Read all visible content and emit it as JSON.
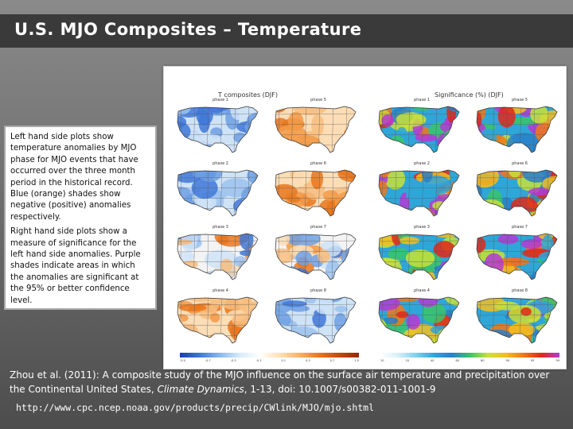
{
  "slide": {
    "title": "U.S. MJO Composites – Temperature"
  },
  "figure": {
    "left_header": "T composites (DJF)",
    "right_header": "Significance (%) (DJF)",
    "left_phase_labels": [
      "phase 1",
      "phase 5",
      "phase 2",
      "phase 6",
      "phase 3",
      "phase 7",
      "phase 4",
      "phase 8"
    ],
    "right_phase_labels": [
      "phase 1",
      "phase 5",
      "phase 2",
      "phase 6",
      "phase 3",
      "phase 7",
      "phase 4",
      "phase 8"
    ],
    "left_colorbar_ticks": [
      "-5.0",
      "-0.7",
      "-0.3",
      "-0.1",
      "0.1",
      "0.3",
      "0.7",
      "1.0"
    ],
    "right_colorbar_ticks": [
      "10",
      "20",
      "40",
      "60",
      "80",
      "90",
      "95",
      "99"
    ]
  },
  "description": {
    "para1": "Left hand side plots show temperature anomalies by MJO phase for MJO events that have occurred over the three month period in the historical record. Blue (orange) shades show negative (positive) anomalies respectively.",
    "para2": "Right hand side plots show a measure of significance for the left hand side anomalies. Purple shades indicate areas in which the anomalies are significant at the 95% or better confidence level."
  },
  "citation": {
    "prefix": "Zhou et al. (2011): A composite study of the MJO influence on the surface air temperature and precipitation over the Continental United States,",
    "journal": "Climate Dynamics",
    "suffix": ", 1-13, doi: 10.1007/s00382-011-1001-9"
  },
  "url": "http://www.cpc.ncep.noaa.gov/products/precip/CWlink/MJO/mjo.shtml",
  "colors": {
    "cold": "#4a7fd4",
    "warm": "#e8771e",
    "significant": "#b43ad6",
    "title_band": "#3a3a3a"
  }
}
